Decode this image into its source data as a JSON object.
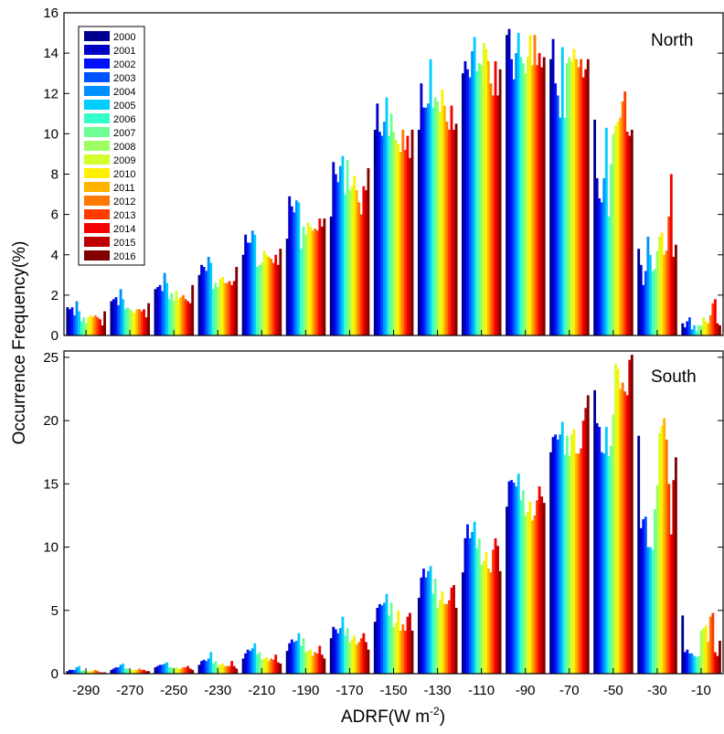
{
  "chart_data": {
    "type": "bar",
    "ylabel": "Occurrence Frequency(%)",
    "xlabel": "ADRF(W m",
    "xlabel_superscript": "-2",
    "xlabel_suffix": ")",
    "categories": [
      "-290",
      "-270",
      "-250",
      "-230",
      "-210",
      "-190",
      "-170",
      "-150",
      "-130",
      "-110",
      "-90",
      "-70",
      "-50",
      "-30",
      "-10"
    ],
    "years": [
      "2000",
      "2001",
      "2002",
      "2003",
      "2004",
      "2005",
      "2006",
      "2007",
      "2008",
      "2009",
      "2010",
      "2011",
      "2012",
      "2013",
      "2014",
      "2015",
      "2016"
    ],
    "year_colors": [
      "#00008f",
      "#0000c6",
      "#0010ff",
      "#0052ff",
      "#0090ff",
      "#00ccff",
      "#34ffca",
      "#6bff94",
      "#9dff62",
      "#d3ff2c",
      "#ffef00",
      "#ffb400",
      "#ff7800",
      "#ff3c00",
      "#f30000",
      "#bf0000",
      "#800000"
    ],
    "panels": [
      {
        "name": "North",
        "yticks": [
          "0",
          "2",
          "4",
          "6",
          "8",
          "10",
          "12",
          "14",
          "16"
        ],
        "ylim": [
          0,
          16
        ],
        "grid": false,
        "legend": "top-left",
        "series_by_category": [
          [
            1.4,
            1.3,
            1.4,
            1.0,
            1.7,
            1.2,
            0.7,
            0.9,
            0.6,
            0.9,
            1.0,
            0.9,
            1.0,
            0.9,
            0.8,
            0.5,
            1.2
          ],
          [
            1.7,
            1.8,
            1.9,
            1.5,
            2.3,
            1.8,
            1.3,
            1.4,
            1.3,
            1.2,
            1.1,
            1.3,
            1.3,
            1.2,
            1.3,
            0.9,
            1.6
          ],
          [
            2.3,
            2.4,
            2.5,
            2.2,
            3.1,
            2.6,
            1.8,
            2.1,
            1.7,
            2.2,
            1.8,
            1.9,
            2.0,
            1.8,
            1.7,
            1.6,
            2.5
          ],
          [
            3.0,
            3.5,
            3.4,
            3.2,
            3.9,
            3.6,
            2.3,
            2.6,
            2.4,
            2.8,
            2.9,
            2.6,
            2.6,
            2.7,
            2.5,
            2.7,
            3.4
          ],
          [
            4.0,
            5.0,
            4.6,
            4.6,
            5.2,
            5.0,
            3.4,
            3.5,
            3.6,
            4.2,
            4.0,
            3.9,
            3.8,
            3.6,
            4.0,
            3.5,
            4.3
          ],
          [
            4.8,
            6.9,
            6.4,
            6.1,
            6.7,
            6.6,
            4.3,
            5.4,
            5.0,
            5.6,
            5.4,
            5.2,
            5.3,
            5.2,
            5.8,
            5.4,
            5.8
          ],
          [
            5.9,
            8.6,
            8.0,
            7.6,
            8.4,
            8.9,
            7.0,
            8.7,
            7.2,
            7.4,
            7.9,
            7.2,
            6.6,
            6.0,
            7.4,
            7.2,
            8.3
          ],
          [
            10.2,
            11.5,
            10.1,
            9.9,
            10.6,
            11.8,
            9.9,
            11.0,
            10.1,
            9.7,
            9.5,
            9.1,
            10.2,
            9.2,
            9.9,
            8.8,
            10.2
          ],
          [
            10.2,
            12.5,
            11.3,
            11.3,
            11.5,
            13.7,
            11.3,
            11.8,
            11.6,
            11.1,
            12.2,
            11.4,
            10.6,
            10.2,
            11.4,
            10.2,
            10.5
          ],
          [
            13.0,
            13.6,
            13.2,
            12.8,
            14.1,
            14.8,
            13.1,
            13.5,
            13.4,
            14.5,
            14.2,
            13.6,
            12.5,
            11.9,
            13.6,
            11.9,
            13.2
          ],
          [
            14.9,
            15.2,
            13.7,
            12.7,
            14.0,
            15.0,
            13.8,
            13.5,
            13.0,
            13.8,
            14.9,
            13.4,
            14.9,
            13.4,
            14.0,
            13.3,
            13.8
          ],
          [
            13.7,
            14.7,
            12.5,
            11.9,
            10.8,
            14.3,
            10.8,
            13.5,
            13.8,
            13.6,
            14.2,
            13.7,
            13.3,
            13.7,
            12.8,
            13.2,
            13.7
          ],
          [
            10.7,
            7.8,
            6.8,
            6.6,
            7.8,
            10.3,
            5.9,
            8.5,
            10.0,
            10.4,
            10.6,
            10.8,
            11.6,
            12.1,
            10.1,
            9.9,
            10.2
          ],
          [
            4.3,
            3.5,
            2.5,
            3.2,
            4.9,
            4.0,
            3.2,
            3.3,
            4.2,
            4.9,
            5.1,
            4.0,
            4.2,
            5.9,
            8.0,
            3.9,
            4.5
          ],
          [
            0.6,
            0.4,
            0.7,
            0.9,
            0.3,
            0.5,
            0.2,
            0.5,
            0.5,
            0.9,
            0.7,
            0.6,
            1.0,
            1.6,
            1.8,
            0.6,
            0.5
          ]
        ]
      },
      {
        "name": "South",
        "yticks": [
          "0",
          "5",
          "10",
          "15",
          "20",
          "25"
        ],
        "ylim": [
          0,
          25.5
        ],
        "grid": false,
        "series_by_category": [
          [
            0.2,
            0.3,
            0.3,
            0.3,
            0.5,
            0.6,
            0.2,
            0.3,
            0.2,
            0.2,
            0.2,
            0.2,
            0.3,
            0.2,
            0.1,
            0.1,
            0.1
          ],
          [
            0.3,
            0.4,
            0.5,
            0.5,
            0.7,
            0.8,
            0.4,
            0.4,
            0.3,
            0.3,
            0.3,
            0.3,
            0.4,
            0.3,
            0.3,
            0.2,
            0.2
          ],
          [
            0.5,
            0.6,
            0.7,
            0.7,
            0.8,
            0.9,
            0.5,
            0.5,
            0.4,
            0.5,
            0.4,
            0.4,
            0.5,
            0.5,
            0.6,
            0.4,
            0.3
          ],
          [
            0.7,
            1.0,
            1.1,
            1.0,
            1.2,
            1.7,
            0.8,
            1.0,
            0.6,
            0.7,
            0.8,
            0.6,
            0.6,
            0.6,
            1.0,
            0.6,
            0.4
          ],
          [
            1.2,
            1.6,
            1.9,
            1.8,
            2.0,
            2.4,
            1.5,
            1.7,
            1.1,
            1.2,
            1.3,
            1.0,
            1.2,
            1.1,
            1.5,
            0.9,
            0.8
          ],
          [
            1.8,
            2.4,
            2.7,
            2.5,
            2.6,
            3.2,
            2.2,
            2.8,
            1.7,
            1.8,
            1.9,
            1.4,
            1.7,
            1.6,
            2.2,
            1.5,
            1.2
          ],
          [
            2.8,
            3.7,
            3.5,
            3.2,
            3.6,
            4.5,
            3.0,
            3.6,
            2.5,
            2.7,
            3.0,
            2.3,
            2.5,
            2.8,
            3.2,
            2.5,
            1.9
          ],
          [
            4.1,
            5.2,
            5.5,
            5.4,
            5.6,
            6.3,
            4.6,
            5.6,
            3.7,
            4.0,
            5.0,
            3.4,
            3.9,
            3.4,
            4.5,
            4.8,
            3.4
          ],
          [
            6.0,
            7.6,
            8.3,
            7.6,
            8.1,
            8.5,
            6.3,
            7.5,
            5.2,
            5.8,
            6.5,
            5.5,
            5.5,
            5.8,
            6.8,
            7.0,
            5.2
          ],
          [
            8.0,
            10.7,
            11.8,
            10.7,
            11.2,
            12.0,
            9.9,
            10.7,
            8.6,
            8.9,
            9.6,
            8.3,
            8.0,
            9.8,
            10.7,
            10.1,
            8.1
          ],
          [
            13.2,
            15.2,
            15.3,
            15.1,
            14.8,
            15.8,
            13.7,
            14.5,
            12.5,
            12.8,
            13.6,
            12.1,
            12.5,
            13.7,
            14.8,
            14.0,
            13.5
          ],
          [
            17.5,
            18.7,
            18.9,
            18.5,
            18.9,
            19.9,
            17.3,
            18.8,
            17.2,
            18.9,
            19.3,
            17.4,
            17.4,
            17.8,
            20.0,
            21.0,
            22.0
          ],
          [
            22.4,
            19.8,
            19.5,
            17.5,
            17.4,
            19.5,
            17.2,
            18.0,
            20.5,
            24.5,
            24.1,
            22.5,
            23.0,
            22.3,
            22.0,
            24.8,
            25.2
          ],
          [
            18.8,
            11.5,
            12.2,
            12.4,
            10.0,
            10.0,
            9.8,
            13.0,
            14.9,
            19.0,
            19.6,
            20.2,
            18.5,
            15.0,
            11.0,
            15.3,
            17.1
          ],
          [
            4.6,
            1.7,
            1.9,
            1.6,
            1.6,
            1.4,
            1.3,
            1.4,
            3.4,
            3.6,
            3.8,
            2.5,
            4.5,
            4.8,
            1.7,
            1.4,
            2.6
          ]
        ]
      }
    ]
  }
}
